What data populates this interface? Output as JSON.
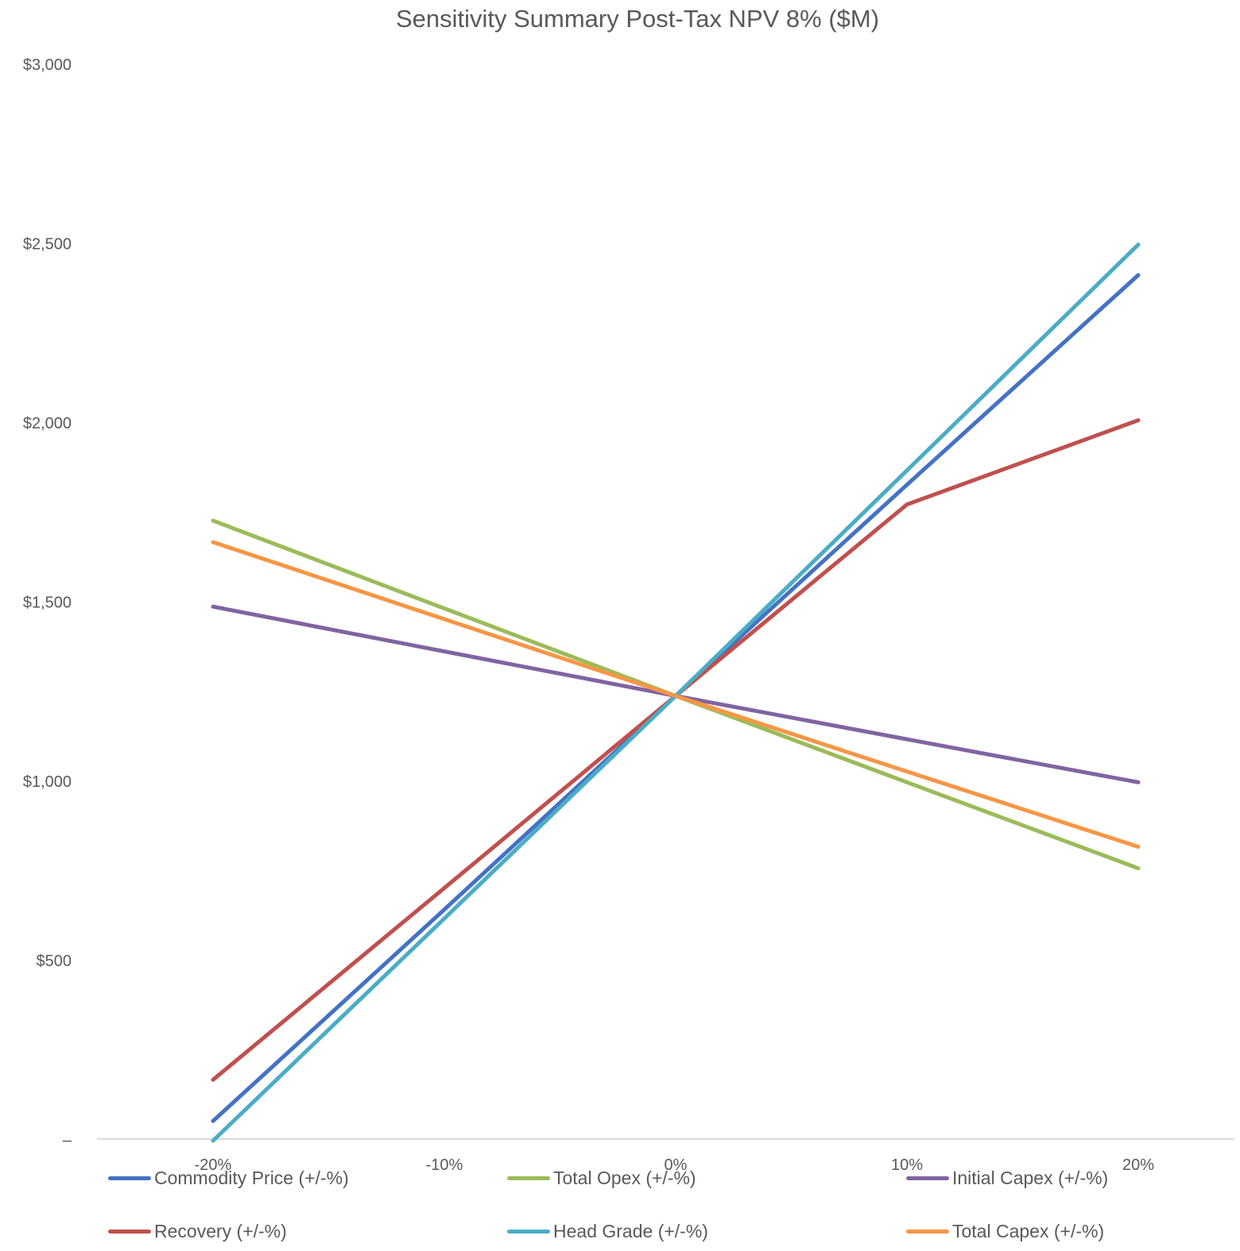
{
  "chart_data": {
    "type": "line",
    "title": "Sensitivity Summary Post-Tax NPV 8% ($M)",
    "xlabel": "",
    "ylabel": "",
    "categories": [
      "-20%",
      "-10%",
      "0%",
      "10%",
      "20%"
    ],
    "ylim": [
      0,
      3000
    ],
    "y_ticks": [
      {
        "value": 0,
        "label": "–"
      },
      {
        "value": 500,
        "label": "$500"
      },
      {
        "value": 1000,
        "label": "$1,000"
      },
      {
        "value": 1500,
        "label": "$1,500"
      },
      {
        "value": 2000,
        "label": "$2,000"
      },
      {
        "value": 2500,
        "label": "$2,500"
      },
      {
        "value": 3000,
        "label": "$3,000"
      }
    ],
    "grid": false,
    "legend_position": "bottom",
    "series": [
      {
        "name": "Commodity Price (+/-%)",
        "color": "#4472C4",
        "values": [
          50,
          640,
          1236,
          1825,
          2410
        ]
      },
      {
        "name": "Total Opex (+/-%)",
        "color": "#9BBB59",
        "values": [
          1725,
          1480,
          1236,
          995,
          755
        ]
      },
      {
        "name": "Initial Capex (+/-%)",
        "color": "#8064A2",
        "values": [
          1485,
          1360,
          1236,
          1115,
          995
        ]
      },
      {
        "name": "Recovery (+/-%)",
        "color": "#C0504D",
        "values": [
          165,
          700,
          1236,
          1770,
          2005
        ]
      },
      {
        "name": "Head Grade (+/-%)",
        "color": "#4BACC6",
        "values": [
          -5,
          615,
          1236,
          1865,
          2495
        ]
      },
      {
        "name": "Total Capex (+/-%)",
        "color": "#F79646",
        "values": [
          1665,
          1450,
          1236,
          1025,
          815
        ]
      }
    ]
  }
}
